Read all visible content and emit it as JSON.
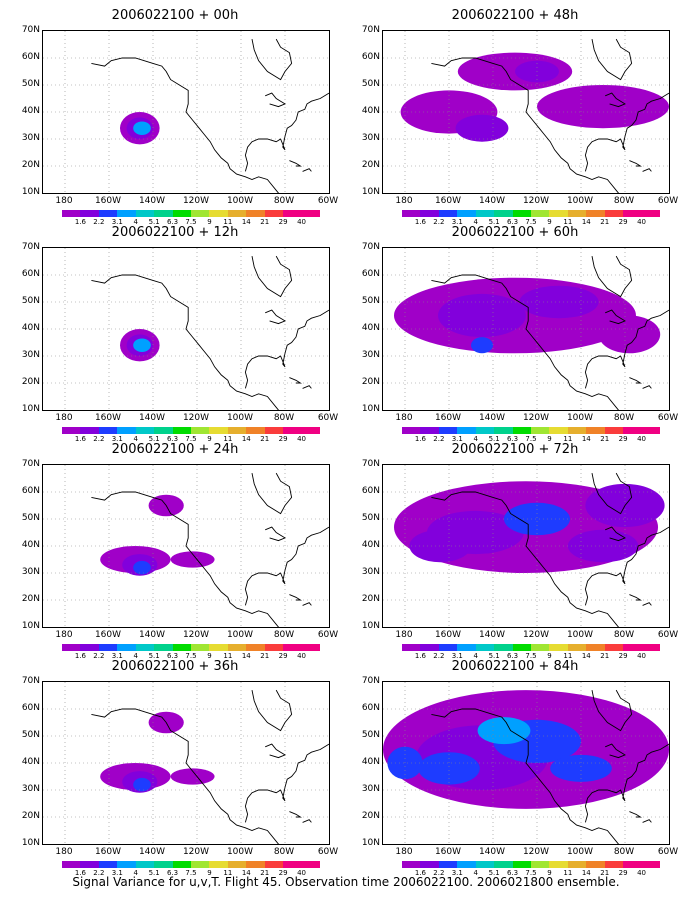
{
  "panels": [
    {
      "title": "2006022100 + 00h",
      "level": 0
    },
    {
      "title": "2006022100 + 48h",
      "level": 2
    },
    {
      "title": "2006022100 + 12h",
      "level": 0
    },
    {
      "title": "2006022100 + 60h",
      "level": 3
    },
    {
      "title": "2006022100 + 24h",
      "level": 1
    },
    {
      "title": "2006022100 + 72h",
      "level": 4
    },
    {
      "title": "2006022100 + 36h",
      "level": 1
    },
    {
      "title": "2006022100 + 84h",
      "level": 5
    }
  ],
  "lat_labels": [
    "70N",
    "60N",
    "50N",
    "40N",
    "30N",
    "20N",
    "10N"
  ],
  "lon_labels": [
    "180",
    "160W",
    "140W",
    "120W",
    "100W",
    "80W",
    "60W"
  ],
  "colorbar": {
    "labels": [
      "1.6",
      "2.2",
      "3.1",
      "4",
      "5.1",
      "6.3",
      "7.5",
      "9",
      "11",
      "14",
      "21",
      "29",
      "40"
    ],
    "colors": [
      "#a000c8",
      "#8200dc",
      "#1e3cff",
      "#00a0ff",
      "#00c8c8",
      "#00d28c",
      "#00dc00",
      "#a0e632",
      "#e6dc32",
      "#e6af2d",
      "#f08228",
      "#fa3c3c",
      "#f00082"
    ]
  },
  "footer": "Signal Variance for u,v,T. Flight 45. Observation time 2006022100. 2006021800 ensemble."
}
